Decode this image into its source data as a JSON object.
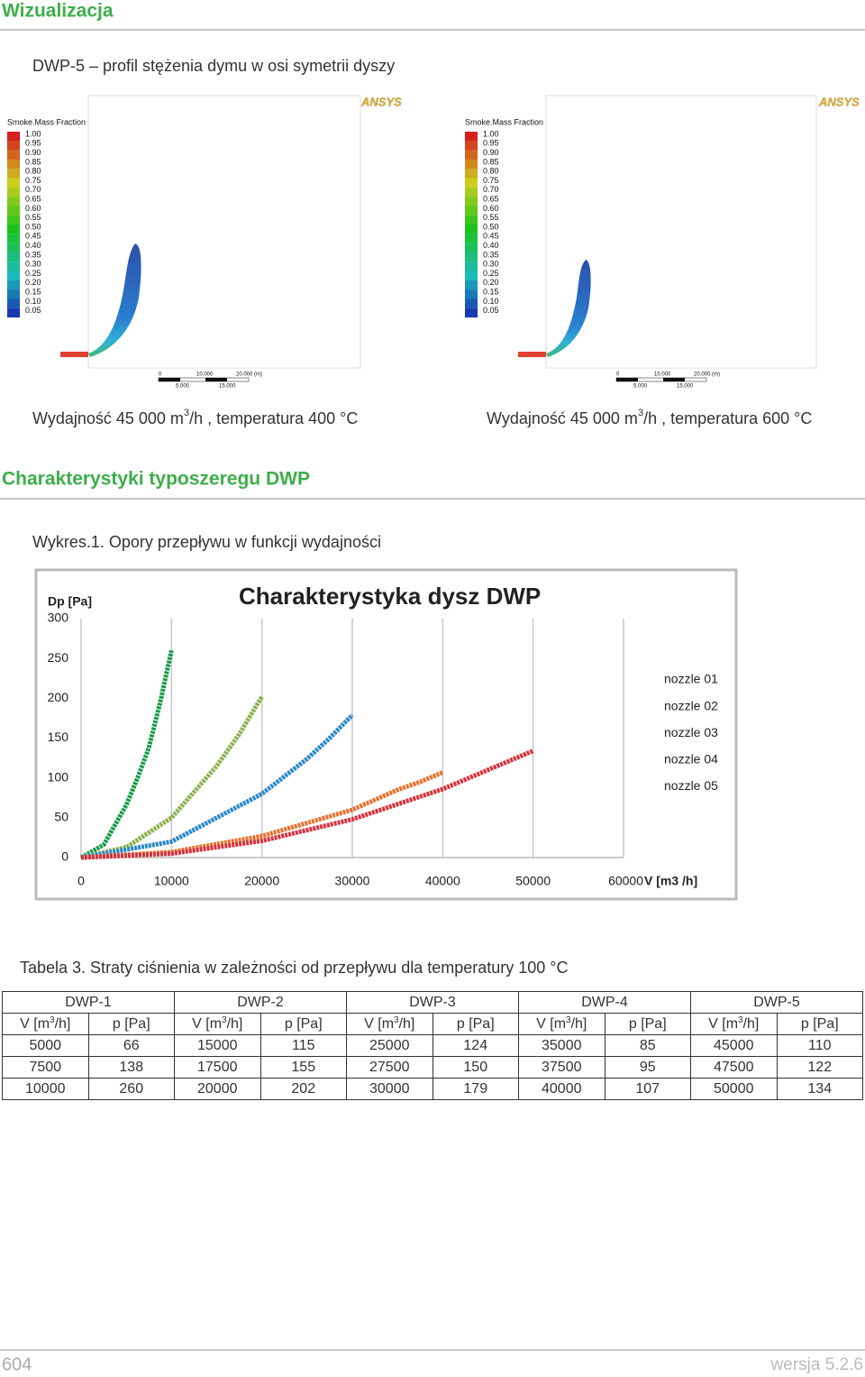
{
  "header": {
    "title": "Wizualizacja"
  },
  "visualization": {
    "subtitle": "DWP-5 – profil stężenia dymu w osi symetrii dyszy",
    "panels": [
      {
        "legend_title": "Smoke.Mass Fraction",
        "legend_values": [
          "1.00",
          "0.95",
          "0.90",
          "0.85",
          "0.80",
          "0.75",
          "0.70",
          "0.65",
          "0.60",
          "0.55",
          "0.50",
          "0.45",
          "0.40",
          "0.35",
          "0.30",
          "0.25",
          "0.20",
          "0.15",
          "0.10",
          "0.05"
        ],
        "logo": "ANSYS",
        "scale_labels": [
          "0",
          "10.000",
          "20.000 (m)",
          "5.000",
          "15.000"
        ],
        "caption": [
          "Wydajność 45 000 m",
          "3",
          "/h , temperatura 400 °C"
        ]
      },
      {
        "legend_title": "Smoke.Mass Fraction",
        "legend_values": [
          "1.00",
          "0.95",
          "0.90",
          "0.85",
          "0.80",
          "0.75",
          "0.70",
          "0.65",
          "0.60",
          "0.55",
          "0.50",
          "0.45",
          "0.40",
          "0.35",
          "0.30",
          "0.25",
          "0.20",
          "0.15",
          "0.10",
          "0.05"
        ],
        "logo": "ANSYS",
        "scale_labels": [
          "0",
          "10.000",
          "20.000 (m)",
          "5.000",
          "15.000"
        ],
        "caption": [
          "Wydajność 45 000 m",
          "3",
          "/h , temperatura 600 °C"
        ]
      }
    ]
  },
  "section": {
    "title": "Charakterystyki typoszeregu DWP",
    "chart_caption": "Wykres.1. Opory przepływu w funkcji wydajności"
  },
  "chart_data": {
    "type": "line",
    "title": "Charakterystyka dysz DWP",
    "y_label": "Dp [Pa]",
    "x_label": "V [m3 /h]",
    "xlim": [
      0,
      60000
    ],
    "ylim": [
      0,
      300
    ],
    "xticks": [
      0,
      10000,
      20000,
      30000,
      40000,
      50000,
      60000
    ],
    "yticks": [
      0,
      50,
      100,
      150,
      200,
      250,
      300
    ],
    "grid": true,
    "legend": "right",
    "series": [
      {
        "name": "nozzle 01",
        "color": "#169a48",
        "x": [
          0,
          2500,
          5000,
          6250,
          7500,
          8750,
          10000
        ],
        "values": [
          0,
          16,
          66,
          100,
          138,
          195,
          260
        ]
      },
      {
        "name": "nozzle 02",
        "color": "#8cb04c",
        "x": [
          0,
          5000,
          10000,
          15000,
          17500,
          20000
        ],
        "values": [
          0,
          13,
          50,
          115,
          155,
          202
        ]
      },
      {
        "name": "nozzle 03",
        "color": "#2a88c8",
        "x": [
          0,
          10000,
          20000,
          25000,
          27500,
          30000
        ],
        "values": [
          0,
          20,
          80,
          124,
          150,
          179
        ]
      },
      {
        "name": "nozzle 04",
        "color": "#e8702c",
        "x": [
          0,
          10000,
          20000,
          30000,
          35000,
          37500,
          40000
        ],
        "values": [
          0,
          7,
          27,
          60,
          85,
          95,
          107
        ]
      },
      {
        "name": "nozzle 05",
        "color": "#d8303a",
        "x": [
          0,
          10000,
          20000,
          30000,
          40000,
          45000,
          47500,
          50000
        ],
        "values": [
          0,
          5,
          21,
          48,
          86,
          110,
          122,
          134
        ]
      }
    ]
  },
  "table": {
    "caption": "Tabela 3. Straty ciśnienia w zależności od przepływu dla temperatury 100 °C",
    "groups": [
      "DWP-1",
      "DWP-2",
      "DWP-3",
      "DWP-4",
      "DWP-5"
    ],
    "subheaders": [
      [
        "V [m",
        "3",
        "/h]"
      ],
      "p [Pa]",
      [
        "V [m",
        "3",
        "/h]"
      ],
      "p [Pa]",
      [
        "V [m",
        "3",
        "/h]"
      ],
      "p [Pa]",
      [
        "V [m",
        "3",
        "/h]"
      ],
      "p [Pa]",
      [
        "V [m",
        "3",
        "/h]"
      ],
      "p [Pa]"
    ],
    "rows": [
      [
        5000,
        66,
        15000,
        115,
        25000,
        124,
        35000,
        85,
        45000,
        110
      ],
      [
        7500,
        138,
        17500,
        155,
        27500,
        150,
        37500,
        95,
        47500,
        122
      ],
      [
        10000,
        260,
        20000,
        202,
        30000,
        179,
        40000,
        107,
        50000,
        134
      ]
    ]
  },
  "footer": {
    "page": "604",
    "version": "wersja 5.2.6"
  }
}
